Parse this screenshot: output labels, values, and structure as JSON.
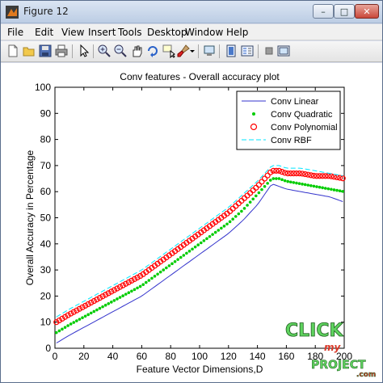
{
  "window": {
    "title": "Figure 12",
    "minimize_glyph": "–",
    "maximize_glyph": "□",
    "close_glyph": "✕"
  },
  "menu": [
    "File",
    "Edit",
    "View",
    "Insert",
    "Tools",
    "Desktop",
    "Window",
    "Help"
  ],
  "toolbar_icons": [
    "new-figure-icon",
    "open-file-icon",
    "save-icon",
    "print-icon",
    "edit-plot-arrow-icon",
    "zoom-in-icon",
    "zoom-out-icon",
    "pan-icon",
    "rotate-3d-icon",
    "data-cursor-icon",
    "brush-icon",
    "link-icon",
    "insert-colorbar-icon",
    "insert-legend-icon",
    "hide-plot-tools-icon",
    "show-plot-tools-icon"
  ],
  "watermark": {
    "line1": "CLICK",
    "line2": "my",
    "line3": "PROJECT",
    "line4": ".com"
  },
  "colors": {
    "linear": "#3333cc",
    "quadratic": "#00cc00",
    "polynomial": "#ff0000",
    "rbf": "#00e5ff",
    "watermark_green": "#5fd35f",
    "watermark_red": "#d93a2a"
  },
  "chart_data": {
    "type": "line",
    "title": "Conv features - Overall accuracy plot",
    "xlabel": "Feature Vector Dimensions,D",
    "ylabel": "Overall Accuracy in Percentage",
    "xlim": [
      0,
      200
    ],
    "ylim": [
      0,
      100
    ],
    "xticks": [
      0,
      20,
      40,
      60,
      80,
      100,
      120,
      140,
      160,
      180,
      200
    ],
    "yticks": [
      0,
      10,
      20,
      30,
      40,
      50,
      60,
      70,
      80,
      90,
      100
    ],
    "legend_position": "top-right",
    "grid": false,
    "x": [
      1,
      10,
      20,
      30,
      40,
      50,
      60,
      70,
      80,
      90,
      100,
      110,
      120,
      130,
      140,
      150,
      155,
      160,
      170,
      180,
      190,
      200
    ],
    "series": [
      {
        "name": "Conv Linear",
        "style": "solid-line",
        "values": [
          2,
          5,
          8,
          11,
          14,
          17,
          20,
          24,
          28,
          32,
          36,
          40,
          44,
          49,
          55,
          63,
          62,
          61,
          60,
          59,
          58,
          56
        ]
      },
      {
        "name": "Conv Quadratic",
        "style": "dot-markers",
        "values": [
          6,
          9,
          12,
          15,
          18,
          21,
          24,
          28,
          32,
          36,
          40,
          44,
          48,
          53,
          59,
          65,
          65,
          64,
          63,
          62,
          61,
          60
        ]
      },
      {
        "name": "Conv Polynomial",
        "style": "circle-markers",
        "values": [
          10,
          13,
          16,
          19,
          22,
          25,
          28,
          32,
          36,
          40,
          44,
          48,
          52,
          57,
          62,
          68,
          68,
          67,
          67,
          66,
          66,
          65
        ]
      },
      {
        "name": "Conv RBF",
        "style": "dashed-line",
        "values": [
          12,
          15,
          18,
          21,
          24,
          27,
          30,
          34,
          38,
          42,
          46,
          50,
          54,
          59,
          64,
          70,
          70,
          69,
          69,
          68,
          67,
          66
        ]
      }
    ]
  }
}
